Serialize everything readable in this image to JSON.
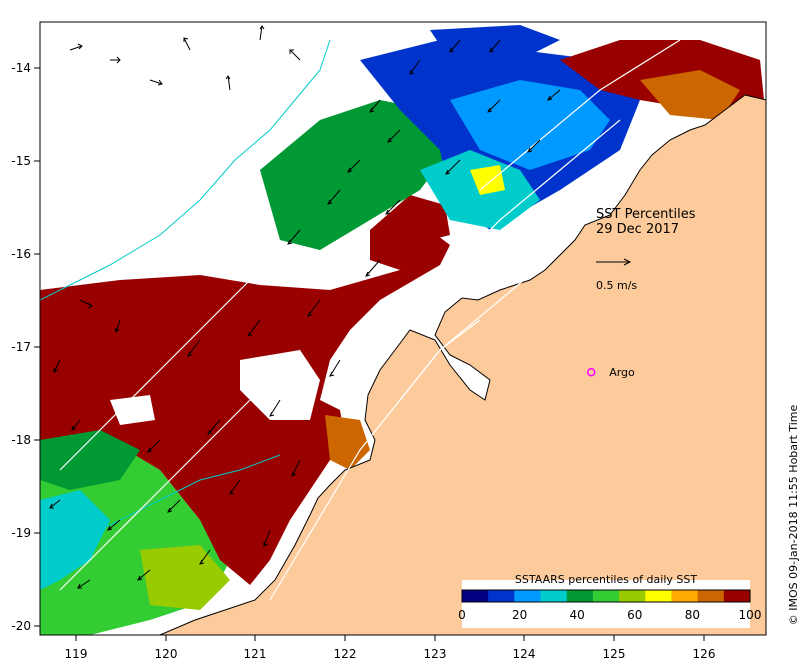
{
  "map": {
    "title_line1": "SST Percentiles",
    "title_line2": "29 Dec 2017",
    "scale_arrow_label": "0.5 m/s",
    "argo_label": "Argo",
    "credit": "© IMOS 09-Jan-2018 11:55 Hobart Time",
    "longitude_ticks": [
      "119",
      "120",
      "121",
      "122",
      "123",
      "124",
      "125",
      "126"
    ],
    "latitude_ticks": [
      "-14",
      "-15",
      "-16",
      "-17",
      "-18",
      "-19",
      "-20"
    ],
    "lon_range": [
      118.6,
      126.7
    ],
    "lat_range": [
      -13.5,
      -20.1
    ],
    "argo_position": {
      "lon": 124.75,
      "lat": -17.27
    },
    "colorbar": {
      "title": "SSTAARS percentiles of daily SST",
      "tick_labels": [
        "0",
        "20",
        "40",
        "60",
        "80",
        "100"
      ],
      "colors": [
        "#000080",
        "#0033cc",
        "#0099ff",
        "#00cccc",
        "#009933",
        "#33cc33",
        "#99cc00",
        "#ffff00",
        "#ffaa00",
        "#cc6600",
        "#990000"
      ]
    }
  },
  "colors": {
    "land": "#fdcb9b",
    "ocean_nodata": "#ffffff",
    "high_percentile": "#990000",
    "isobath": "#00cccc",
    "argo_marker": "#ff00ff"
  }
}
